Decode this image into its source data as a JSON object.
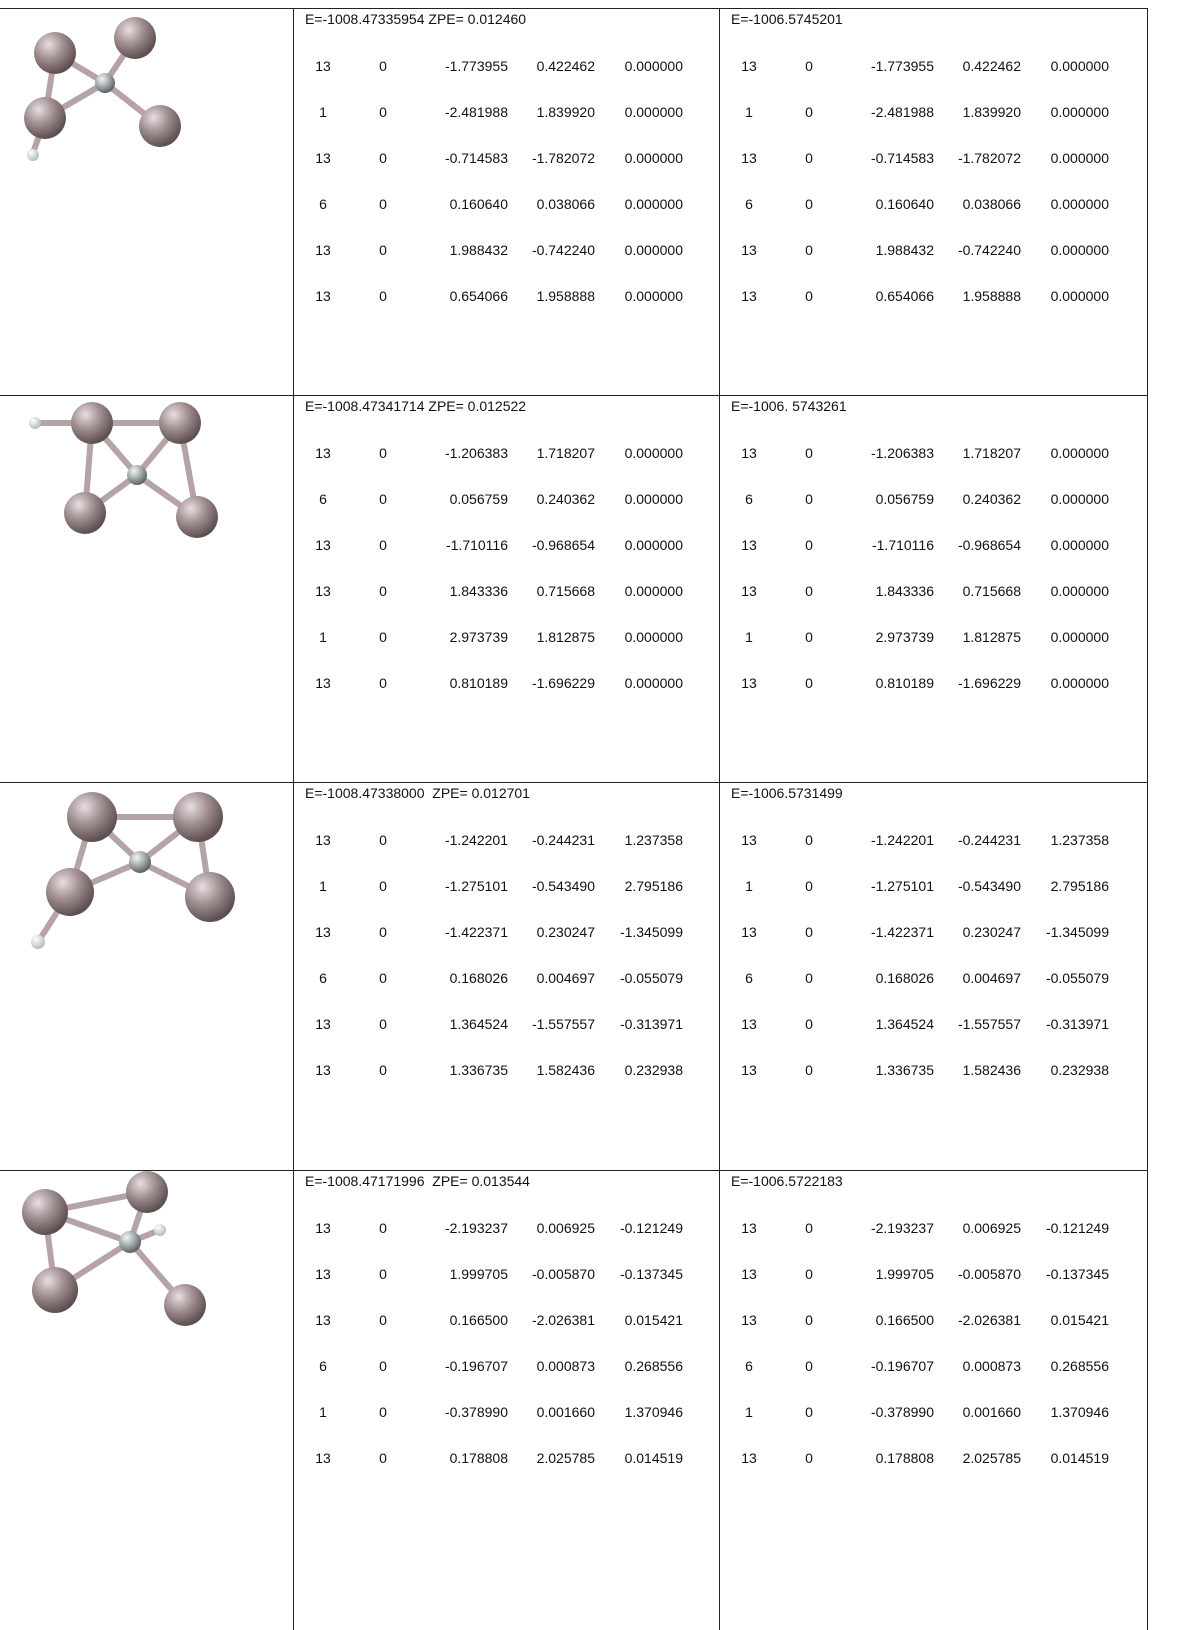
{
  "rows": [
    {
      "left": {
        "header": "E=-1008.47335954 ZPE= 0.012460",
        "atoms": [
          [
            "13",
            "0",
            "-1.773955",
            "0.422462",
            "0.000000"
          ],
          [
            "1",
            "0",
            "-2.481988",
            "1.839920",
            "0.000000"
          ],
          [
            "13",
            "0",
            "-0.714583",
            "-1.782072",
            "0.000000"
          ],
          [
            "6",
            "0",
            "0.160640",
            "0.038066",
            "0.000000"
          ],
          [
            "13",
            "0",
            "1.988432",
            "-0.742240",
            "0.000000"
          ],
          [
            "13",
            "0",
            "0.654066",
            "1.958888",
            "0.000000"
          ]
        ]
      },
      "right": {
        "header": "E=-1006.5745201",
        "atoms": [
          [
            "13",
            "0",
            "-1.773955",
            "0.422462",
            "0.000000"
          ],
          [
            "1",
            "0",
            "-2.481988",
            "1.839920",
            "0.000000"
          ],
          [
            "13",
            "0",
            "-0.714583",
            "-1.782072",
            "0.000000"
          ],
          [
            "6",
            "0",
            "0.160640",
            "0.038066",
            "0.000000"
          ],
          [
            "13",
            "0",
            "1.988432",
            "-0.742240",
            "0.000000"
          ],
          [
            "13",
            "0",
            "0.654066",
            "1.958888",
            "0.000000"
          ]
        ]
      }
    },
    {
      "left": {
        "header": "E=-1008.47341714 ZPE= 0.012522",
        "atoms": [
          [
            "13",
            "0",
            "-1.206383",
            "1.718207",
            "0.000000"
          ],
          [
            "6",
            "0",
            "0.056759",
            "0.240362",
            "0.000000"
          ],
          [
            "13",
            "0",
            "-1.710116",
            "-0.968654",
            "0.000000"
          ],
          [
            "13",
            "0",
            "1.843336",
            "0.715668",
            "0.000000"
          ],
          [
            "1",
            "0",
            "2.973739",
            "1.812875",
            "0.000000"
          ],
          [
            "13",
            "0",
            "0.810189",
            "-1.696229",
            "0.000000"
          ]
        ]
      },
      "right": {
        "header": "E=-1006. 5743261",
        "atoms": [
          [
            "13",
            "0",
            "-1.206383",
            "1.718207",
            "0.000000"
          ],
          [
            "6",
            "0",
            "0.056759",
            "0.240362",
            "0.000000"
          ],
          [
            "13",
            "0",
            "-1.710116",
            "-0.968654",
            "0.000000"
          ],
          [
            "13",
            "0",
            "1.843336",
            "0.715668",
            "0.000000"
          ],
          [
            "1",
            "0",
            "2.973739",
            "1.812875",
            "0.000000"
          ],
          [
            "13",
            "0",
            "0.810189",
            "-1.696229",
            "0.000000"
          ]
        ]
      }
    },
    {
      "left": {
        "header": "E=-1008.47338000  ZPE= 0.012701",
        "atoms": [
          [
            "13",
            "0",
            "-1.242201",
            "-0.244231",
            "1.237358"
          ],
          [
            "1",
            "0",
            "-1.275101",
            "-0.543490",
            "2.795186"
          ],
          [
            "13",
            "0",
            "-1.422371",
            "0.230247",
            "-1.345099"
          ],
          [
            "6",
            "0",
            "0.168026",
            "0.004697",
            "-0.055079"
          ],
          [
            "13",
            "0",
            "1.364524",
            "-1.557557",
            "-0.313971"
          ],
          [
            "13",
            "0",
            "1.336735",
            "1.582436",
            "0.232938"
          ]
        ]
      },
      "right": {
        "header": "E=-1006.5731499",
        "atoms": [
          [
            "13",
            "0",
            "-1.242201",
            "-0.244231",
            "1.237358"
          ],
          [
            "1",
            "0",
            "-1.275101",
            "-0.543490",
            "2.795186"
          ],
          [
            "13",
            "0",
            "-1.422371",
            "0.230247",
            "-1.345099"
          ],
          [
            "6",
            "0",
            "0.168026",
            "0.004697",
            "-0.055079"
          ],
          [
            "13",
            "0",
            "1.364524",
            "-1.557557",
            "-0.313971"
          ],
          [
            "13",
            "0",
            "1.336735",
            "1.582436",
            "0.232938"
          ]
        ]
      }
    },
    {
      "left": {
        "header": "E=-1008.47171996  ZPE= 0.013544",
        "atoms": [
          [
            "13",
            "0",
            "-2.193237",
            "0.006925",
            "-0.121249"
          ],
          [
            "13",
            "0",
            "1.999705",
            "-0.005870",
            "-0.137345"
          ],
          [
            "13",
            "0",
            "0.166500",
            "-2.026381",
            "0.015421"
          ],
          [
            "6",
            "0",
            "-0.196707",
            "0.000873",
            "0.268556"
          ],
          [
            "1",
            "0",
            "-0.378990",
            "0.001660",
            "1.370946"
          ],
          [
            "13",
            "0",
            "0.178808",
            "2.025785",
            "0.014519"
          ]
        ]
      },
      "right": {
        "header": "E=-1006.5722183",
        "atoms": [
          [
            "13",
            "0",
            "-2.193237",
            "0.006925",
            "-0.121249"
          ],
          [
            "13",
            "0",
            "1.999705",
            "-0.005870",
            "-0.137345"
          ],
          [
            "13",
            "0",
            "0.166500",
            "-2.026381",
            "0.015421"
          ],
          [
            "6",
            "0",
            "-0.196707",
            "0.000873",
            "0.268556"
          ],
          [
            "1",
            "0",
            "-0.378990",
            "0.001660",
            "1.370946"
          ],
          [
            "13",
            "0",
            "0.178808",
            "2.025785",
            "0.014519"
          ]
        ]
      }
    }
  ]
}
